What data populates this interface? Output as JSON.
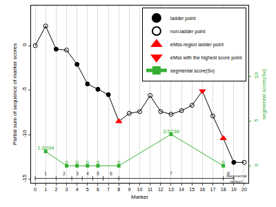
{
  "chart_data": {
    "type": "line",
    "xlabel": "Marker",
    "ylabel": "Partial sum of sequence of marker scores",
    "y2label": "segmental score(Sv)",
    "xlim": [
      -0.4,
      20.4
    ],
    "xticks": [
      0,
      1,
      2,
      3,
      4,
      5,
      6,
      7,
      8,
      9,
      10,
      11,
      12,
      13,
      14,
      15,
      16,
      17,
      18,
      19,
      20
    ],
    "ylim": [
      -15.4,
      4.5
    ],
    "yticks": [
      -15,
      -10,
      -5,
      0
    ],
    "y2lim": [
      -1.9,
      17.9
    ],
    "y2ticks": [
      0,
      5,
      10
    ],
    "grid": true,
    "legend": "top right",
    "partial_sums": {
      "color": "#000000",
      "line_style": "solid",
      "x": [
        0,
        1,
        2,
        3,
        4,
        5,
        6,
        7,
        8,
        9,
        10,
        11,
        12,
        13,
        14,
        15,
        16,
        17,
        18,
        19,
        20
      ],
      "values": [
        0,
        2.2,
        -0.4,
        -0.5,
        -2.1,
        -4.3,
        -4.9,
        -5.5,
        -8.5,
        -7.6,
        -7.4,
        -5.6,
        -7.4,
        -7.7,
        -7.3,
        -6.7,
        -5.1,
        -7.9,
        -10.4,
        -13.1,
        -13.1
      ],
      "point_type": [
        "non-ladder point",
        "non-ladder point",
        "ladder point",
        "non-ladder point",
        "ladder point",
        "ladder point",
        "ladder point",
        "ladder point",
        "eMss-region ladder point",
        "non-ladder point",
        "non-ladder point",
        "non-ladder point",
        "non-ladder point",
        "non-ladder point",
        "non-ladder point",
        "non-ladder point",
        "eMss with the highest score point",
        "non-ladder point",
        "eMss-region ladder point",
        "ladder point",
        "non-ladder point"
      ]
    },
    "point_types": [
      {
        "name": "ladder point",
        "marker": "filled circle",
        "color": "#000000"
      },
      {
        "name": "non-ladder point",
        "marker": "open circle",
        "color": "#000000"
      },
      {
        "name": "eMss-region ladder point",
        "marker": "triangle-up",
        "color": "#ff0000"
      },
      {
        "name": "eMss with the highest score point",
        "marker": "triangle-down",
        "color": "#ff0000"
      }
    ],
    "series": [
      {
        "name": "segmental score(Sv)",
        "axis": "y2",
        "color": "#33b033",
        "marker": "square",
        "line_style": "solid",
        "data_labels": true,
        "x": [
          1,
          3,
          4,
          5,
          6,
          8,
          13,
          18
        ],
        "values": [
          1.6094,
          0,
          0,
          0,
          0,
          0,
          3.5236,
          0
        ]
      }
    ],
    "segmental_regions": {
      "label": "(segmental region)",
      "bounds": [
        0,
        2,
        3.5,
        4.5,
        5.5,
        6.5,
        8,
        18,
        19
      ],
      "labels": [
        "1",
        "2",
        "3",
        "4",
        "5",
        "6",
        "7",
        "8"
      ]
    }
  }
}
